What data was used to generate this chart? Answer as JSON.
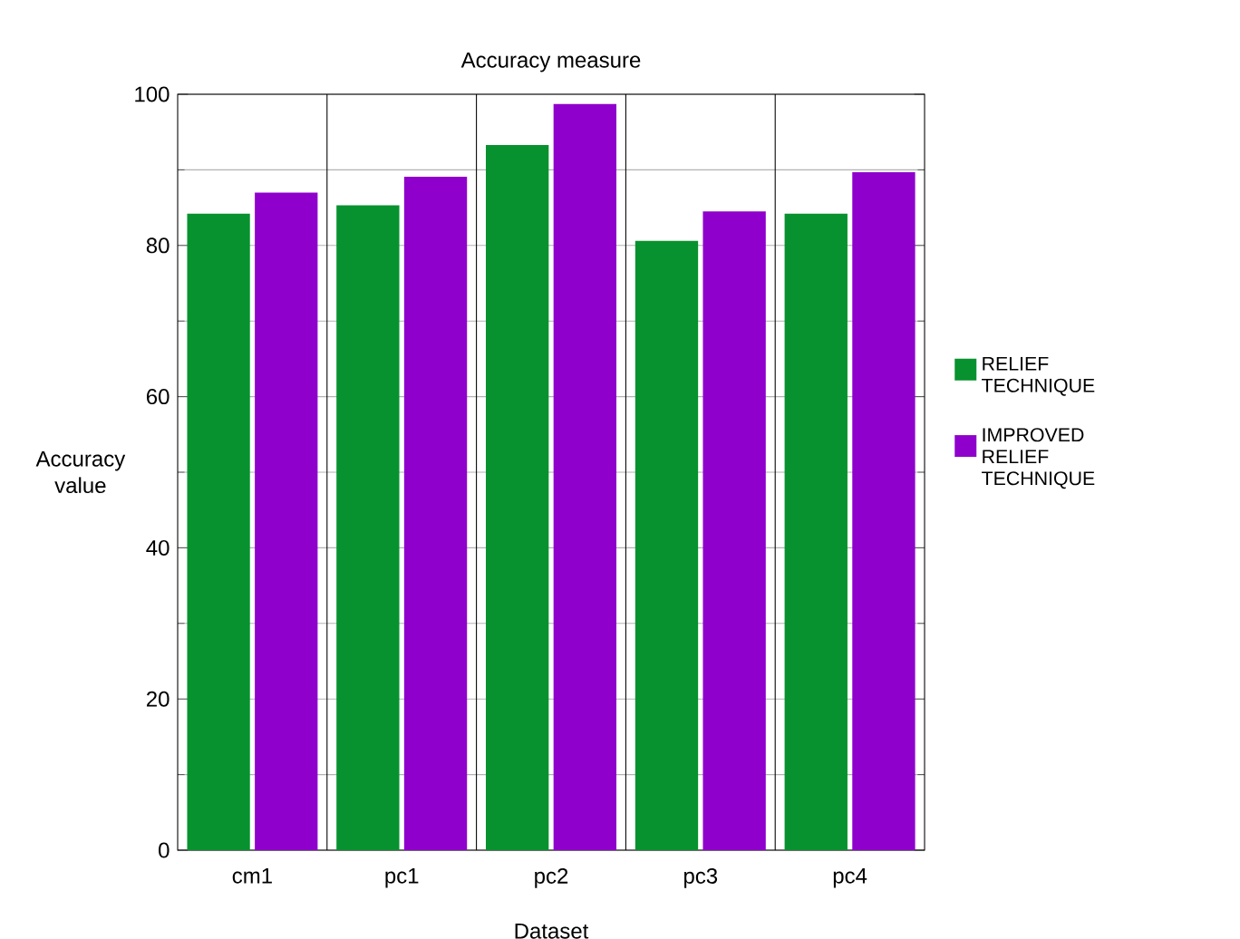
{
  "chart_data": {
    "type": "bar",
    "title": "Accuracy  measure",
    "xlabel": "Dataset",
    "ylabel": "Accuracy value",
    "categories": [
      "cm1",
      "pc1",
      "pc2",
      "pc3",
      "pc4"
    ],
    "series": [
      {
        "name": "RELIEF TECHNIQUE",
        "color": "#07922f",
        "values": [
          84.2,
          85.3,
          93.3,
          80.6,
          84.2
        ]
      },
      {
        "name": "IMPROVED RELIEF TECHNIQUE",
        "color": "#8f00cc",
        "values": [
          87.0,
          89.1,
          98.7,
          84.5,
          89.7
        ]
      }
    ],
    "ylim": [
      0,
      100
    ],
    "yticks": [
      0,
      20,
      40,
      60,
      80,
      100
    ],
    "grid": "y",
    "legend": "right"
  }
}
